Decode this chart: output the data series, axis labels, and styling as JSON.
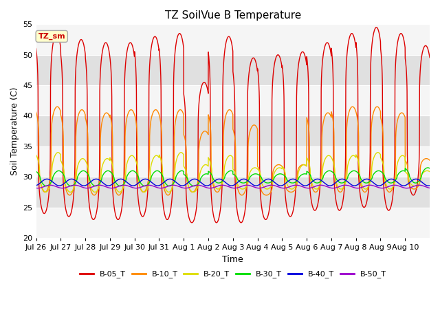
{
  "title": "TZ SoilVue B Temperature",
  "xlabel": "Time",
  "ylabel": "Soil Temperature (C)",
  "ylim": [
    20,
    55
  ],
  "yticks": [
    20,
    25,
    30,
    35,
    40,
    45,
    50,
    55
  ],
  "annotation_label": "TZ_sm",
  "annotation_color": "#cc0000",
  "annotation_bg": "#ffffcc",
  "annotation_border": "#aaaaaa",
  "x_tick_labels": [
    "Jul 26",
    "Jul 27",
    "Jul 28",
    "Jul 29",
    "Jul 30",
    "Jul 31",
    "Aug 1",
    "Aug 2",
    "Aug 3",
    "Aug 4",
    "Aug 5",
    "Aug 6",
    "Aug 7",
    "Aug 8",
    "Aug 9",
    "Aug 10"
  ],
  "legend_entries": [
    "B-05_T",
    "B-10_T",
    "B-20_T",
    "B-30_T",
    "B-40_T",
    "B-50_T"
  ],
  "line_colors": [
    "#dd0000",
    "#ff8800",
    "#dddd00",
    "#00dd00",
    "#0000dd",
    "#9900cc"
  ],
  "background_color": "#ffffff",
  "plot_bg_color": "#e8e8e8",
  "band_color_light": "#f5f5f5",
  "band_color_dark": "#e0e0e0",
  "num_days": 16,
  "peaks_B05": [
    53.5,
    52.5,
    52.0,
    52.0,
    53.0,
    53.5,
    45.5,
    53.0,
    49.5,
    50.0,
    50.5,
    52.0,
    53.5,
    54.5,
    53.5,
    51.5
  ],
  "troughs_B05": [
    24.0,
    23.5,
    23.0,
    23.0,
    23.5,
    23.0,
    22.5,
    22.5,
    22.5,
    23.0,
    23.5,
    24.5,
    24.5,
    25.0,
    24.5,
    27.0
  ],
  "peaks_B10": [
    41.5,
    41.0,
    40.5,
    41.0,
    41.0,
    41.0,
    37.5,
    41.0,
    38.5,
    32.0,
    32.0,
    40.5,
    41.5,
    41.5,
    40.5,
    33.0
  ],
  "troughs_B10": [
    27.5,
    27.0,
    27.0,
    27.0,
    27.5,
    27.0,
    27.5,
    27.5,
    27.0,
    27.0,
    27.5,
    27.5,
    27.5,
    27.5,
    27.5,
    28.0
  ],
  "peaks_B20": [
    34.0,
    33.0,
    33.0,
    33.5,
    33.5,
    34.0,
    32.0,
    33.5,
    31.5,
    31.5,
    32.0,
    33.5,
    33.5,
    34.0,
    33.5,
    31.0
  ],
  "troughs_B20": [
    27.5,
    27.5,
    27.5,
    27.5,
    27.5,
    27.5,
    27.5,
    28.0,
    28.0,
    28.0,
    28.0,
    28.0,
    28.0,
    28.0,
    28.0,
    28.5
  ],
  "peaks_B30": [
    31.0,
    31.0,
    31.0,
    31.0,
    31.0,
    31.0,
    30.5,
    31.0,
    30.5,
    30.5,
    30.5,
    31.0,
    31.0,
    31.0,
    31.0,
    31.5
  ],
  "troughs_B30": [
    28.5,
    28.5,
    28.5,
    28.5,
    28.5,
    28.5,
    28.5,
    29.0,
    29.0,
    29.0,
    29.0,
    29.0,
    29.0,
    29.0,
    29.0,
    29.0
  ],
  "base_B40": 29.1,
  "amp_B40": 0.55,
  "base_B50": 28.4,
  "amp_B50": 0.25,
  "samples_per_day": 288,
  "peak_sharpness": 4.0,
  "peak_phase": 0.58
}
